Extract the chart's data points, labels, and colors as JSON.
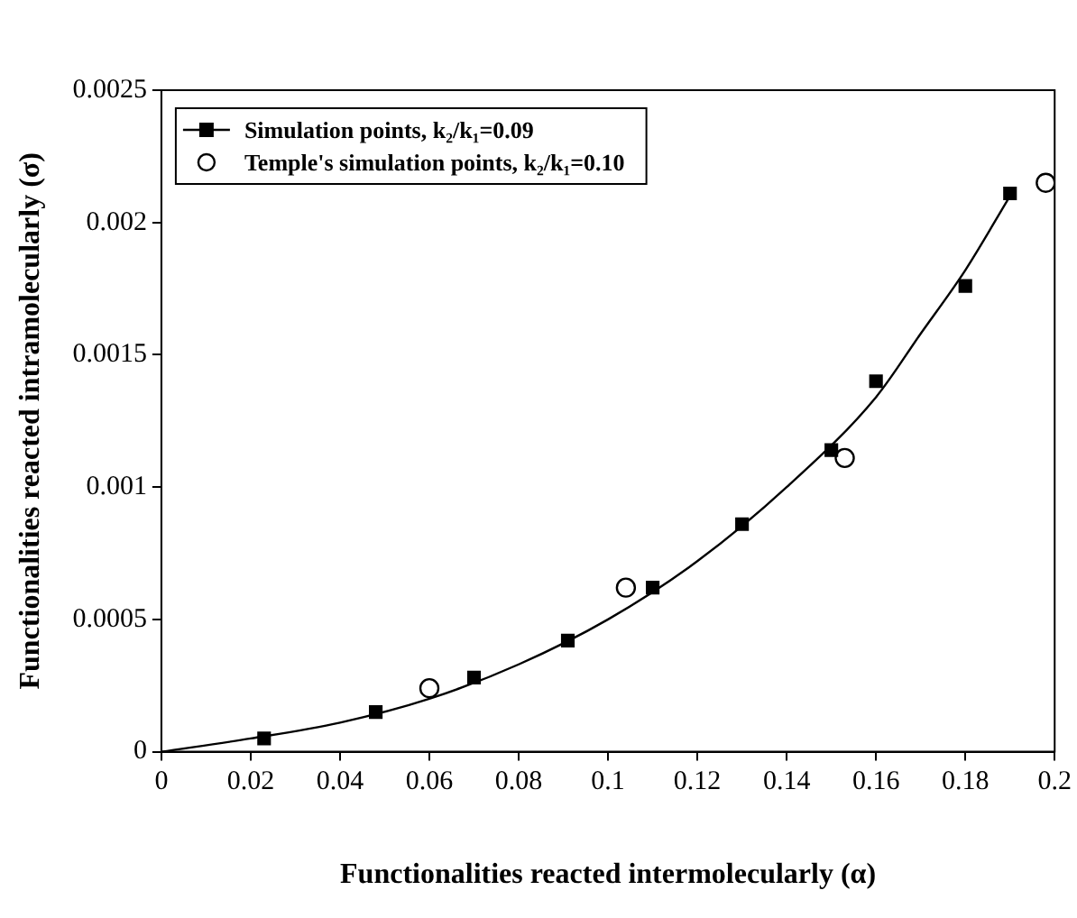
{
  "chart_data": {
    "type": "scatter",
    "xlabel": "Functionalities reacted intermolecularly (α)",
    "ylabel": "Functionalities reacted intramolecularly (σ)",
    "xlim": [
      0,
      0.2
    ],
    "xticks": [
      0,
      0.02,
      0.04,
      0.06,
      0.08,
      0.1,
      0.12,
      0.14,
      0.16,
      0.18,
      0.2
    ],
    "ylim": [
      0,
      0.0025
    ],
    "yticks": [
      0,
      0.0005,
      0.001,
      0.0015,
      0.002,
      0.0025
    ],
    "grid": false,
    "legend": "top left",
    "series": [
      {
        "name": "Simulation points, k₂/k₁=0.09",
        "color": "#000000",
        "marker": "square",
        "x": [
          0.023,
          0.048,
          0.07,
          0.091,
          0.11,
          0.13,
          0.15,
          0.16,
          0.18,
          0.19
        ],
        "values": [
          5e-05,
          0.00015,
          0.00028,
          0.00042,
          0.00062,
          0.00086,
          0.00114,
          0.0014,
          0.00176,
          0.00211
        ]
      },
      {
        "name": "Temple's simulation points, k₂/k₁=0.10",
        "color": "#000000",
        "marker": "circle",
        "x": [
          0.06,
          0.104,
          0.153,
          0.198
        ],
        "values": [
          0.00024,
          0.00062,
          0.00111,
          0.00215
        ]
      },
      {
        "type": "line",
        "color": "#000000",
        "marker": "none",
        "line_style": "solid",
        "x": [
          0,
          0.02,
          0.04,
          0.06,
          0.08,
          0.1,
          0.12,
          0.14,
          0.16,
          0.17,
          0.18,
          0.19
        ],
        "values": [
          0,
          5e-05,
          0.00011,
          0.0002,
          0.00033,
          0.0005,
          0.00072,
          0.001,
          0.00134,
          0.00158,
          0.00182,
          0.0021
        ]
      }
    ]
  }
}
